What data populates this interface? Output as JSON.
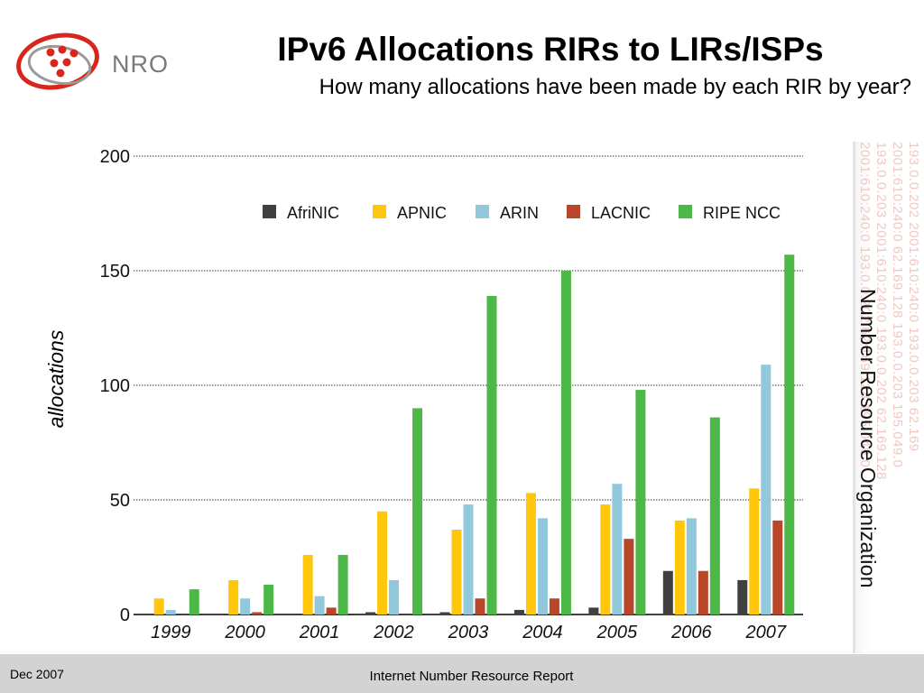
{
  "header": {
    "title": "IPv6 Allocations RIRs to LIRs/ISPs",
    "subtitle": "How many allocations have been made by each RIR by year?",
    "logo_text": "NRO"
  },
  "side": {
    "label": "Number Resource Organization",
    "ip_text": [
      "2001:610:240:0  193.0.0.202  62.169.128  195.049.0",
      "193.0.0.203  2001:610:240:0  193.0.0.202  62.169.128",
      "2001:610:240:0  62.169.128  193.0.0.203  195.049.0",
      "193.0.0.202  2001:610:240:0  193.0.0.203  62.169"
    ]
  },
  "footer": {
    "date": "Dec 2007",
    "report": "Internet Number Resource Report"
  },
  "colors": {
    "AfriNIC": "#404040",
    "APNIC": "#ffc60b",
    "ARIN": "#92c8dc",
    "LACNIC": "#b8472a",
    "RIPE NCC": "#4db848",
    "logo_red": "#d9261c",
    "logo_gray": "#7a7a7a"
  },
  "chart_data": {
    "type": "bar",
    "title": "",
    "xlabel": "",
    "ylabel": "allocations",
    "ylim": [
      0,
      200
    ],
    "yticks": [
      0,
      50,
      100,
      150,
      200
    ],
    "grid": true,
    "legend_position": "top",
    "categories": [
      "1999",
      "2000",
      "2001",
      "2002",
      "2003",
      "2004",
      "2005",
      "2006",
      "2007"
    ],
    "series": [
      {
        "name": "AfriNIC",
        "values": [
          0,
          0,
          0,
          1,
          1,
          2,
          3,
          19,
          15
        ]
      },
      {
        "name": "APNIC",
        "values": [
          7,
          15,
          26,
          45,
          37,
          53,
          48,
          41,
          55
        ]
      },
      {
        "name": "ARIN",
        "values": [
          2,
          7,
          8,
          15,
          48,
          42,
          57,
          42,
          109
        ]
      },
      {
        "name": "LACNIC",
        "values": [
          0,
          1,
          3,
          0,
          7,
          7,
          33,
          19,
          41
        ]
      },
      {
        "name": "RIPE NCC",
        "values": [
          11,
          13,
          26,
          90,
          139,
          150,
          98,
          86,
          157
        ]
      }
    ]
  }
}
